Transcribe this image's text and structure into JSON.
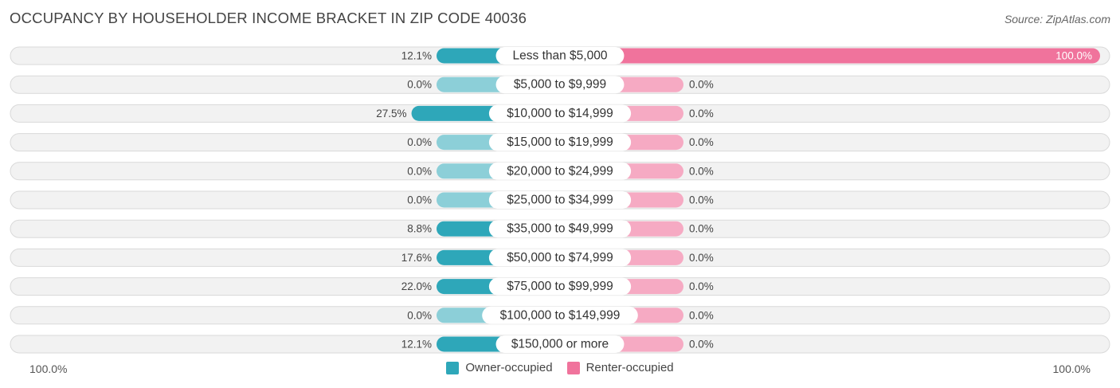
{
  "header": {
    "title": "OCCUPANCY BY HOUSEHOLDER INCOME BRACKET IN ZIP CODE 40036",
    "source": "Source: ZipAtlas.com"
  },
  "colors": {
    "owner_strong": "#2ea7b9",
    "owner_light": "#8ccfd8",
    "renter_strong": "#f0739c",
    "renter_light": "#f6aac3"
  },
  "axis": {
    "left_label": "100.0%",
    "right_label": "100.0%"
  },
  "legend": [
    {
      "label": "Owner-occupied",
      "color": "#2ea7b9"
    },
    {
      "label": "Renter-occupied",
      "color": "#f0739c"
    }
  ],
  "chart_data": {
    "type": "bar",
    "orientation": "horizontal-diverging",
    "title": "OCCUPANCY BY HOUSEHOLDER INCOME BRACKET IN ZIP CODE 40036",
    "categories": [
      "Less than $5,000",
      "$5,000 to $9,999",
      "$10,000 to $14,999",
      "$15,000 to $19,999",
      "$20,000 to $24,999",
      "$25,000 to $34,999",
      "$35,000 to $49,999",
      "$50,000 to $74,999",
      "$75,000 to $99,999",
      "$100,000 to $149,999",
      "$150,000 or more"
    ],
    "series": [
      {
        "name": "Owner-occupied",
        "values": [
          12.1,
          0.0,
          27.5,
          0.0,
          0.0,
          0.0,
          8.8,
          17.6,
          22.0,
          0.0,
          12.1
        ],
        "labels": [
          "12.1%",
          "0.0%",
          "27.5%",
          "0.0%",
          "0.0%",
          "0.0%",
          "8.8%",
          "17.6%",
          "22.0%",
          "0.0%",
          "12.1%"
        ]
      },
      {
        "name": "Renter-occupied",
        "values": [
          100.0,
          0.0,
          0.0,
          0.0,
          0.0,
          0.0,
          0.0,
          0.0,
          0.0,
          0.0,
          0.0
        ],
        "labels": [
          "100.0%",
          "0.0%",
          "0.0%",
          "0.0%",
          "0.0%",
          "0.0%",
          "0.0%",
          "0.0%",
          "0.0%",
          "0.0%",
          "0.0%"
        ]
      }
    ],
    "xlim": [
      -100,
      100
    ],
    "legend_position": "bottom-center"
  }
}
